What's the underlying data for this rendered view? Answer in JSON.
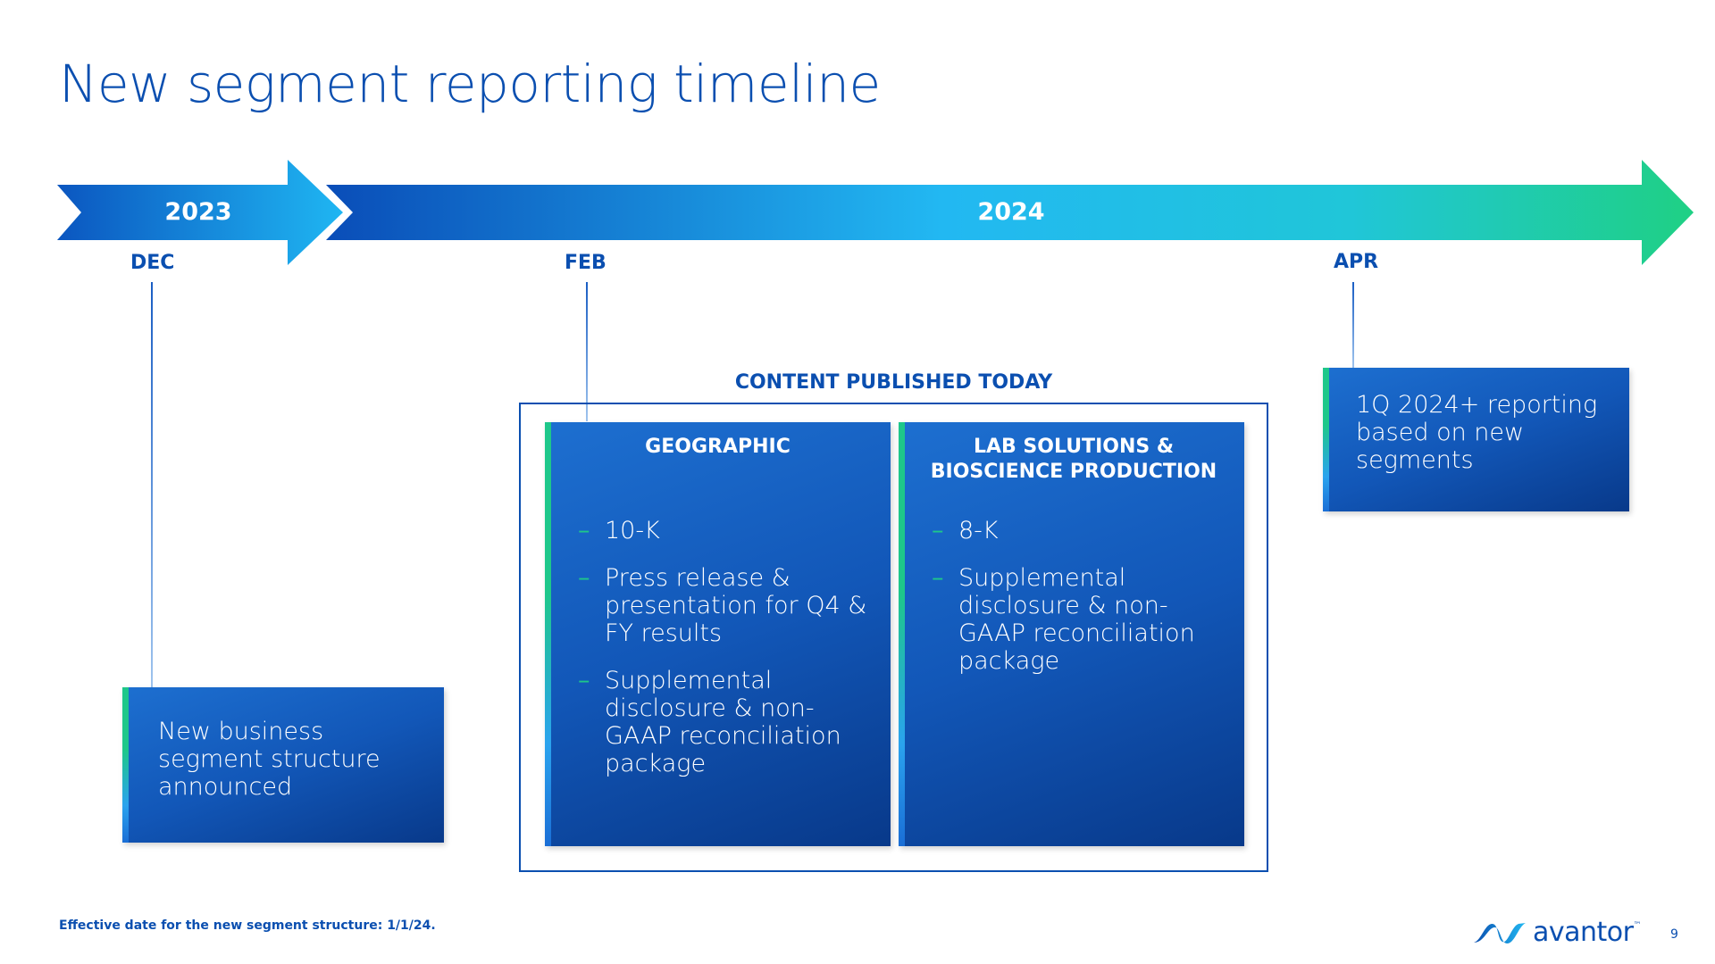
{
  "slide": {
    "title": "New segment reporting timeline",
    "footnote": "Effective date for the new segment structure: 1/1/24.",
    "page_number": "9"
  },
  "timeline": {
    "years": [
      "2023",
      "2024"
    ],
    "months": [
      "DEC",
      "FEB",
      "APR"
    ]
  },
  "events": {
    "dec": {
      "text": "New business segment structure announced"
    },
    "apr": {
      "text": "1Q 2024+ reporting based on new segments"
    }
  },
  "content_published": {
    "label": "CONTENT PUBLISHED TODAY",
    "geographic": {
      "header": "GEOGRAPHIC",
      "items": [
        "10-K",
        "Press release & presentation for Q4 & FY results",
        "Supplemental disclosure & non-GAAP reconciliation package"
      ]
    },
    "lab_solutions": {
      "header": "LAB SOLUTIONS & BIOSCIENCE PRODUCTION",
      "items": [
        "8-K",
        "Supplemental disclosure & non-GAAP reconciliation package"
      ]
    },
    "bullet_glyph": "–"
  },
  "brand": {
    "logo_text": "avantor",
    "trademark": "™",
    "logo_icon": "avantor-mark-icon",
    "colors": {
      "primary_blue": "#0b4fb0",
      "accent_green": "#1ec78a",
      "light_blue": "#22b8f2"
    }
  }
}
